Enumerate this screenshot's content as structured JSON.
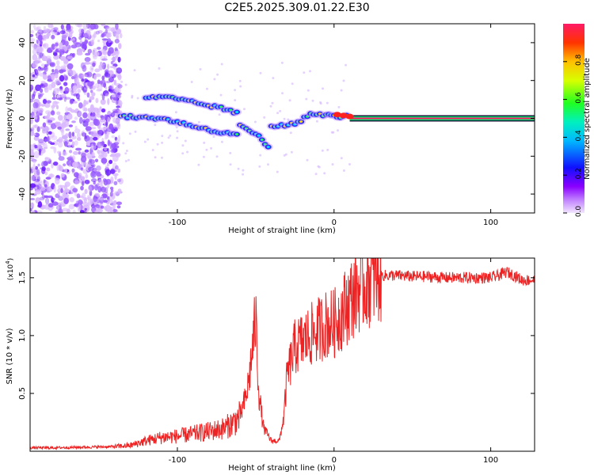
{
  "title": "C2E5.2025.309.01.22.E30",
  "colors": {
    "snr_line": "#ee2222",
    "spectrogram_scatter": "#8a4bff",
    "spectrogram_core": "#2b2bff",
    "tone_line": "#ff1a66",
    "frame": "#000000"
  },
  "chart_data": [
    {
      "type": "heatmap",
      "title": "",
      "xlabel": "Height of straight line (km)",
      "ylabel": "Frequency (Hz)",
      "xlim": [
        -194,
        128
      ],
      "ylim": [
        -50,
        50
      ],
      "xticks": [
        -100,
        0,
        100
      ],
      "yticks": [
        -40,
        -20,
        0,
        20,
        40
      ],
      "x_tick_labels": [
        "-100",
        "0",
        "100"
      ],
      "y_tick_labels": [
        "-40",
        "-20",
        "0",
        "20",
        "40"
      ],
      "colorbar": {
        "label": "Normalized spectral amplitude",
        "range": [
          0,
          1
        ],
        "ticks": [
          "0.0",
          "0.2",
          "0.4",
          "0.6",
          "0.8"
        ]
      },
      "features": [
        {
          "name": "broadband noise",
          "x": [
            -194,
            -136
          ],
          "y": [
            -50,
            50
          ]
        },
        {
          "name": "main descending track",
          "points": [
            [
              -136,
              1
            ],
            [
              -110,
              0
            ],
            [
              -90,
              -4
            ],
            [
              -70,
              -8
            ],
            [
              -60,
              -8
            ]
          ]
        },
        {
          "name": "upper branch",
          "points": [
            [
              -120,
              11
            ],
            [
              -105,
              11
            ],
            [
              -70,
              5
            ],
            [
              -60,
              2
            ]
          ]
        },
        {
          "name": "lower branch",
          "points": [
            [
              -60,
              -4
            ],
            [
              -48,
              -9
            ],
            [
              -40,
              -17
            ]
          ]
        },
        {
          "name": "rising track",
          "points": [
            [
              -40,
              -4
            ],
            [
              -25,
              -3
            ],
            [
              -15,
              2
            ],
            [
              -5,
              2
            ],
            [
              0,
              1
            ],
            [
              10,
              1
            ]
          ]
        },
        {
          "name": "steady tone",
          "x": [
            10,
            128
          ],
          "y": [
            0,
            0
          ]
        }
      ]
    },
    {
      "type": "line",
      "title": "",
      "xlabel": "Height of straight line (km)",
      "ylabel": "SNR (10 * v/v)",
      "y_multiplier": "(x10",
      "y_multiplier_exp": "4",
      "xlim": [
        -194,
        128
      ],
      "ylim": [
        0,
        16700
      ],
      "xticks": [
        -100,
        0,
        100
      ],
      "yticks": [
        5000,
        10000,
        15000
      ],
      "x_tick_labels": [
        "-100",
        "0",
        "100"
      ],
      "y_tick_labels": [
        "0.5",
        "1.0",
        "1.5"
      ],
      "series": [
        {
          "name": "SNR",
          "x": [
            -194,
            -180,
            -160,
            -140,
            -130,
            -120,
            -110,
            -100,
            -90,
            -80,
            -70,
            -65,
            -60,
            -56,
            -54,
            -52,
            -50,
            -48,
            -45,
            -40,
            -35,
            -32,
            -30,
            -25,
            -20,
            -15,
            -10,
            -5,
            0,
            5,
            10,
            15,
            20,
            25,
            30,
            40,
            50,
            60,
            70,
            80,
            90,
            100,
            105,
            110,
            115,
            120,
            128
          ],
          "values": [
            300,
            300,
            350,
            400,
            500,
            900,
            1200,
            1300,
            1500,
            1700,
            2000,
            2400,
            3000,
            4800,
            6500,
            9000,
            11500,
            5000,
            2000,
            900,
            900,
            3000,
            6500,
            9000,
            9500,
            10000,
            10500,
            11000,
            11000,
            12000,
            13000,
            14000,
            14500,
            15000,
            15200,
            15200,
            15100,
            15100,
            15000,
            15000,
            15000,
            15000,
            15200,
            15500,
            15200,
            14800,
            14800
          ]
        }
      ]
    }
  ]
}
